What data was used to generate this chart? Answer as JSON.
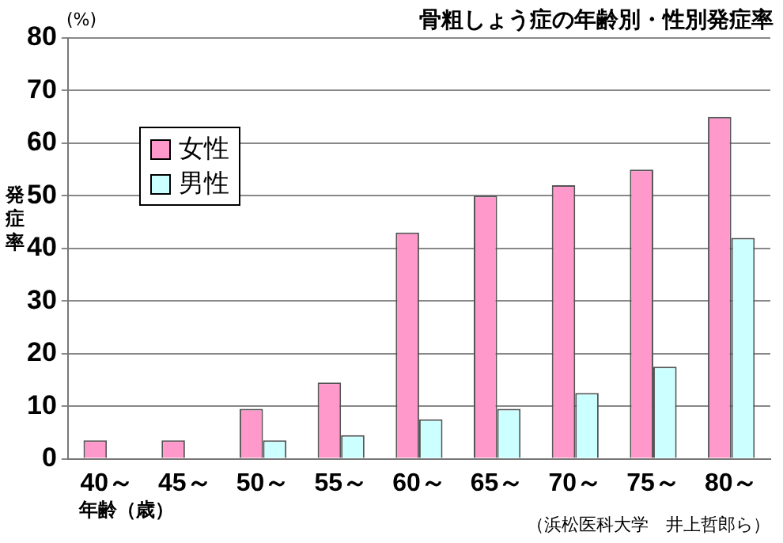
{
  "chart_data": {
    "type": "bar",
    "title": "骨粗しょう症の年齢別・性別発症率",
    "ylabel": "発症率",
    "xlabel": "年齢（歳）",
    "annotations": [
      "(%)",
      "（浜松医科大学　井上哲郎ら）"
    ],
    "categories": [
      "40～",
      "45～",
      "50～",
      "55～",
      "60～",
      "65～",
      "70～",
      "75～",
      "80～"
    ],
    "series": [
      {
        "name": "女性",
        "color": "#ff99cc",
        "values": [
          3.5,
          3.5,
          9.5,
          14.5,
          43,
          50,
          52,
          55,
          65
        ]
      },
      {
        "name": "男性",
        "color": "#ccffff",
        "values": [
          0,
          0,
          3.5,
          4.5,
          7.5,
          9.5,
          12.5,
          17.5,
          42
        ]
      }
    ],
    "ylim": [
      0,
      80
    ],
    "yticks": [
      0,
      10,
      20,
      30,
      40,
      50,
      60,
      70,
      80
    ],
    "grid": "y",
    "legend": "top left"
  }
}
